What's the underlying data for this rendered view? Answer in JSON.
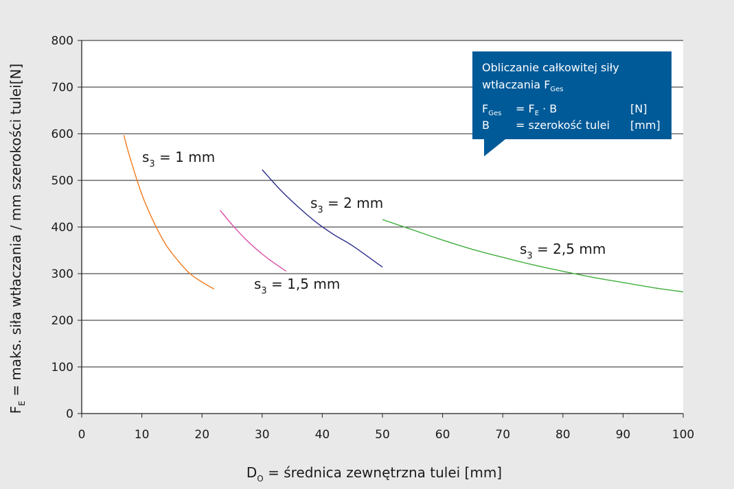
{
  "chart_data": {
    "type": "line",
    "xlabel": {
      "main": "D",
      "sub": "O",
      "rest": " = średnica zewnętrzna tulei [mm]"
    },
    "ylabel": {
      "main": "F",
      "sub": "E",
      "rest": " = maks. siła wtłaczania / mm szerokości tulei[N]"
    },
    "xlim": [
      0,
      100
    ],
    "ylim": [
      0,
      800
    ],
    "xticks": [
      0,
      10,
      20,
      30,
      40,
      50,
      60,
      70,
      80,
      90,
      100
    ],
    "yticks": [
      0,
      100,
      200,
      300,
      400,
      500,
      600,
      700,
      800
    ],
    "grid": "horizontal",
    "series": [
      {
        "label_main": "s",
        "label_sub": "3",
        "label_rest": " = 1 mm",
        "color": "#f07a1c",
        "x": [
          7,
          8,
          10,
          12,
          14,
          16,
          18,
          20,
          22
        ],
        "y": [
          597,
          550,
          470,
          410,
          362,
          328,
          300,
          282,
          267
        ]
      },
      {
        "label_main": "s",
        "label_sub": "3",
        "label_rest": " = 1,5 mm",
        "color": "#d94fa6",
        "x": [
          23,
          25,
          27,
          29,
          31,
          34
        ],
        "y": [
          436,
          405,
          377,
          353,
          332,
          305
        ]
      },
      {
        "label_main": "s",
        "label_sub": "3",
        "label_rest": " = 2 mm",
        "color": "#2a2a8c",
        "x": [
          30,
          33,
          36,
          39,
          42,
          45,
          50
        ],
        "y": [
          523,
          480,
          443,
          410,
          383,
          360,
          314
        ]
      },
      {
        "label_main": "s",
        "label_sub": "3",
        "label_rest": " = 2,5 mm",
        "color": "#3fae3b",
        "x": [
          50,
          55,
          60,
          65,
          70,
          75,
          80,
          85,
          90,
          95,
          100
        ],
        "y": [
          416,
          394,
          372,
          352,
          335,
          319,
          305,
          292,
          281,
          270,
          261
        ]
      }
    ],
    "info_box": {
      "color": "#005a98",
      "title_line1": "Obliczanie całkowitej siły",
      "title_line2_main": "wtłaczania F",
      "title_line2_sub": "Ges",
      "row1": {
        "left_main": "F",
        "left_sub": "Ges",
        "mid_pre": "= F",
        "mid_sub": "E",
        "mid_post": " · B",
        "unit": "[N]"
      },
      "row2": {
        "left_main": "B",
        "mid_pre": "= szerokość tulei",
        "unit": "[mm]"
      }
    }
  }
}
